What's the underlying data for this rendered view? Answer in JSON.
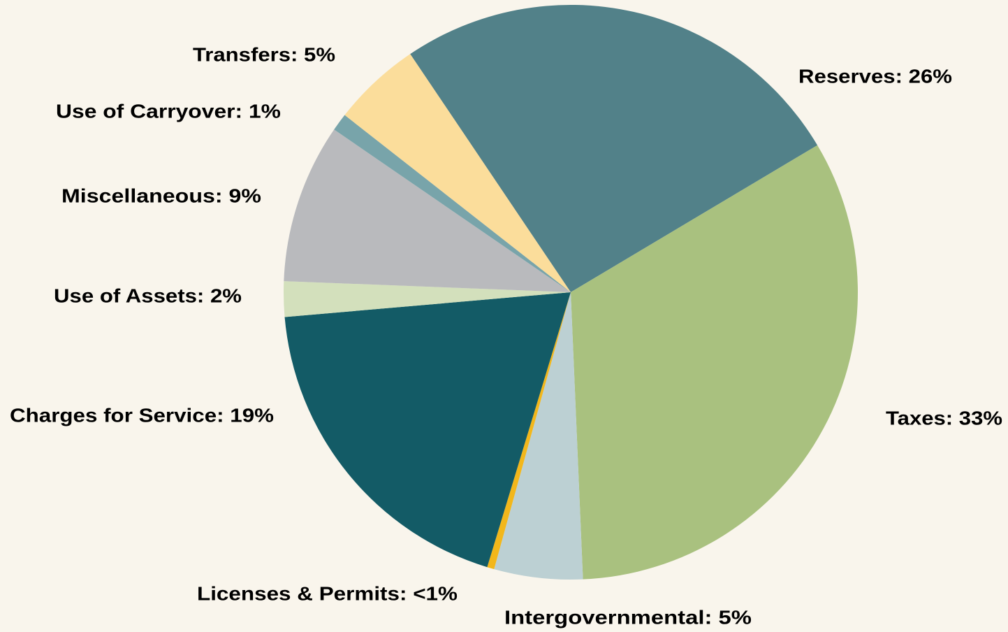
{
  "chart_data": {
    "type": "pie",
    "labels": [
      "Reserves: 26%",
      "Taxes: 33%",
      "Intergovernmental: 5%",
      "Licenses & Permits: <1%",
      "Charges for Service: 19%",
      "Use of Assets: 2%",
      "Miscellaneous: 9%",
      "Use of Carryover: 1%",
      "Transfers: 5%"
    ],
    "values": [
      26,
      33,
      5,
      0.4,
      19,
      2,
      9,
      1,
      5
    ],
    "colors": [
      "#528189",
      "#a9c17f",
      "#bcd0d3",
      "#f2b71b",
      "#135b66",
      "#d3e0bc",
      "#b9babd",
      "#78a4aa",
      "#fbdd9b"
    ]
  }
}
